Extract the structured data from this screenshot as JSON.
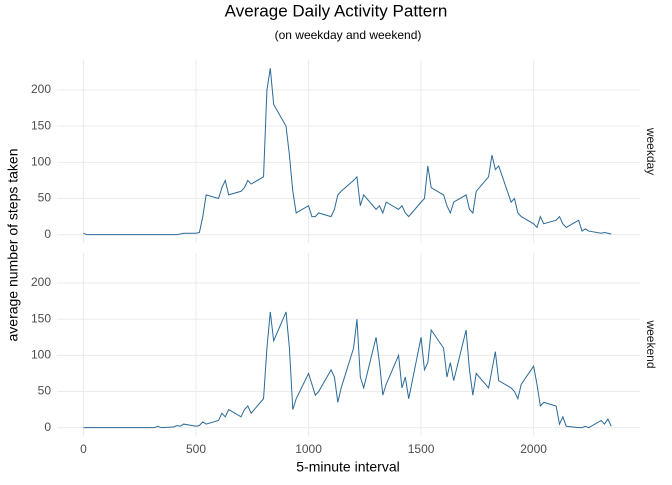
{
  "chart_data": {
    "type": "line",
    "title": "Average Daily Activity Pattern",
    "subtitle": "(on weekday and weekend)",
    "x_label": "5-minute interval",
    "y_label": "average number of steps taken",
    "color": "#2b6a99",
    "grid": true,
    "xlim": [
      -117.75,
      2472.75
    ],
    "xticks": [
      0,
      500,
      1000,
      1500,
      2000
    ],
    "ylim": [
      -11.5,
      241.5
    ],
    "yticks": [
      0,
      50,
      100,
      150,
      200
    ],
    "x": [
      0,
      15,
      30,
      45,
      100,
      115,
      130,
      145,
      200,
      215,
      230,
      245,
      300,
      315,
      330,
      345,
      400,
      415,
      430,
      445,
      500,
      515,
      530,
      545,
      600,
      615,
      630,
      645,
      700,
      715,
      730,
      745,
      800,
      815,
      830,
      845,
      900,
      915,
      930,
      945,
      1000,
      1015,
      1030,
      1045,
      1100,
      1115,
      1130,
      1145,
      1200,
      1215,
      1230,
      1245,
      1300,
      1315,
      1330,
      1345,
      1400,
      1415,
      1430,
      1445,
      1500,
      1515,
      1530,
      1545,
      1600,
      1615,
      1630,
      1645,
      1700,
      1715,
      1730,
      1745,
      1800,
      1815,
      1830,
      1845,
      1900,
      1915,
      1930,
      1945,
      2000,
      2015,
      2030,
      2045,
      2100,
      2115,
      2130,
      2145,
      2200,
      2215,
      2230,
      2245,
      2300,
      2315,
      2330,
      2345
    ],
    "facets": [
      {
        "name": "weekday",
        "values": [
          2,
          0,
          0,
          0,
          0,
          0,
          0,
          0,
          0,
          0,
          0,
          0,
          0,
          0,
          0,
          0,
          0,
          0,
          1,
          2,
          2,
          3,
          25,
          55,
          50,
          65,
          75,
          55,
          60,
          65,
          75,
          70,
          80,
          200,
          230,
          180,
          150,
          110,
          60,
          30,
          40,
          25,
          25,
          30,
          25,
          35,
          55,
          60,
          75,
          80,
          40,
          55,
          35,
          40,
          30,
          45,
          35,
          40,
          30,
          25,
          45,
          50,
          95,
          65,
          55,
          40,
          30,
          45,
          55,
          35,
          30,
          60,
          80,
          110,
          90,
          95,
          45,
          50,
          30,
          25,
          15,
          10,
          25,
          15,
          20,
          25,
          15,
          10,
          20,
          5,
          8,
          5,
          2,
          3,
          2,
          1
        ]
      },
      {
        "name": "weekend",
        "values": [
          0,
          0,
          0,
          0,
          0,
          0,
          0,
          0,
          0,
          0,
          0,
          0,
          0,
          0,
          2,
          0,
          1,
          3,
          2,
          5,
          2,
          3,
          8,
          5,
          10,
          20,
          15,
          25,
          15,
          25,
          30,
          20,
          40,
          110,
          160,
          120,
          160,
          110,
          25,
          40,
          75,
          60,
          45,
          50,
          80,
          70,
          35,
          55,
          110,
          150,
          70,
          55,
          125,
          90,
          45,
          60,
          100,
          55,
          70,
          40,
          125,
          80,
          90,
          135,
          110,
          70,
          90,
          65,
          135,
          80,
          45,
          75,
          55,
          80,
          105,
          65,
          55,
          50,
          40,
          60,
          85,
          60,
          30,
          35,
          30,
          5,
          15,
          2,
          0,
          0,
          2,
          0,
          10,
          5,
          12,
          2
        ]
      }
    ]
  }
}
